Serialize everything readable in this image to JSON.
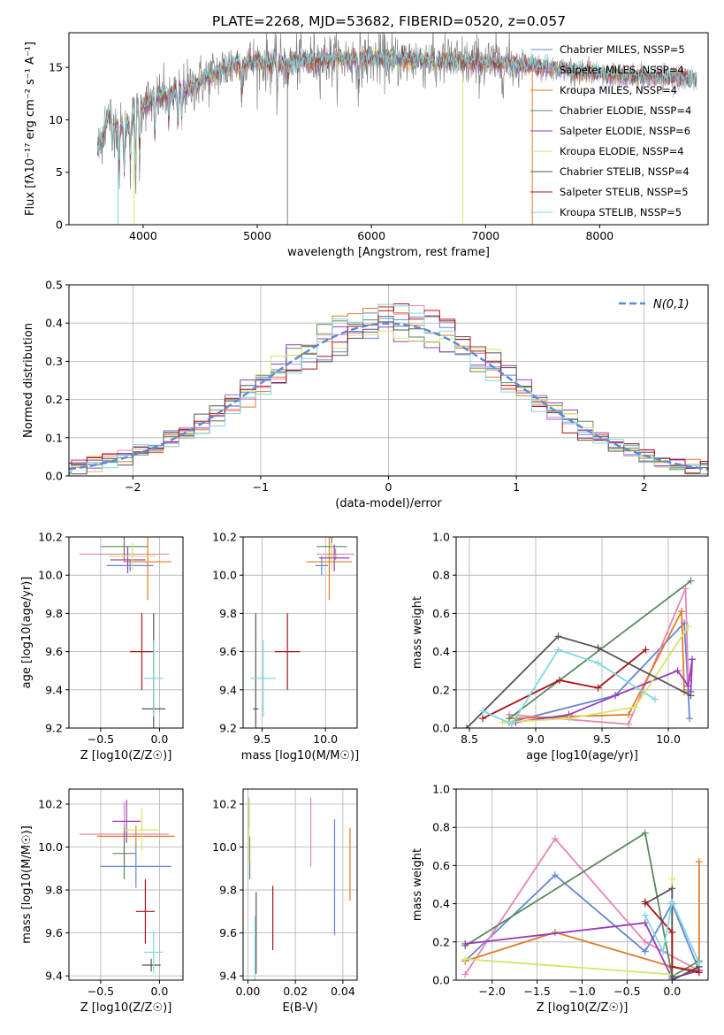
{
  "figure": {
    "title": "PLATE=2268, MJD=53682, FIBERID=0520, z=0.057"
  },
  "colors": {
    "Chabrier MILES": "#6685d9",
    "Salpeter MILES": "#e486b7",
    "Kroupa MILES": "#e07b27",
    "Chabrier ELODIE": "#5a8a5e",
    "Salpeter ELODIE": "#9a39bb",
    "Kroupa ELODIE": "#d4e667",
    "Chabrier STELIB": "#555555",
    "Salpeter STELIB": "#aa1418",
    "Kroupa STELIB": "#7fd8e0"
  },
  "chart_data": [
    {
      "id": "spectrum",
      "type": "line",
      "title": "",
      "xlabel": "wavelength [Angstrom, rest frame]",
      "ylabel": "Flux [fλ10⁻¹⁷ erg cm⁻² s⁻¹ A⁻¹]",
      "xlim": [
        3350,
        8950
      ],
      "ylim": [
        0,
        18.3
      ],
      "xticks": [
        4000,
        5000,
        6000,
        7000,
        8000
      ],
      "yticks": [
        0,
        5,
        10,
        15
      ],
      "grid": false,
      "legend": "top-right",
      "legend_entries": [
        "Chabrier MILES, NSSP=5",
        "Salpeter MILES, NSSP=4",
        "Kroupa MILES, NSSP=4",
        "Chabrier ELODIE, NSSP=4",
        "Salpeter ELODIE, NSSP=6",
        "Kroupa ELODIE, NSSP=4",
        "Chabrier STELIB, NSSP=4",
        "Salpeter STELIB, NSSP=5",
        "Kroupa STELIB, NSSP=5"
      ],
      "continuum": [
        [
          3600,
          7
        ],
        [
          3700,
          10.5
        ],
        [
          3800,
          9
        ],
        [
          3900,
          10
        ],
        [
          4000,
          11.5
        ],
        [
          4200,
          12.3
        ],
        [
          4400,
          13
        ],
        [
          4600,
          14.3
        ],
        [
          4800,
          15.3
        ],
        [
          5000,
          15.5
        ],
        [
          5200,
          15.3
        ],
        [
          5500,
          15.7
        ],
        [
          6000,
          15.8
        ],
        [
          6500,
          15.7
        ],
        [
          7000,
          15.4
        ],
        [
          7400,
          15.2
        ],
        [
          7800,
          14.6
        ],
        [
          8200,
          14.2
        ],
        [
          8600,
          14.0
        ],
        [
          8850,
          13.9
        ]
      ]
    },
    {
      "id": "residuals",
      "type": "line",
      "xlabel": "(data-model)/error",
      "ylabel": "Normed distribution",
      "xlim": [
        -2.5,
        2.5
      ],
      "ylim": [
        0,
        0.5
      ],
      "xticks": [
        -2,
        -1,
        0,
        1,
        2
      ],
      "yticks": [
        0.0,
        0.1,
        0.2,
        0.3,
        0.4,
        0.5
      ],
      "grid": true,
      "legend": "top-right",
      "legend_entries": [
        "N(0,1)"
      ],
      "reference_curve": {
        "name": "N(0,1)",
        "mean": 0,
        "sigma": 1,
        "color": "#5b8dd9"
      }
    },
    {
      "id": "age-vs-Z",
      "type": "scatter",
      "xlabel": "Z [log10(Z/Z☉)]",
      "ylabel": "age [log10(age/yr)]",
      "xlim": [
        -0.77,
        0.2
      ],
      "ylim": [
        9.2,
        10.2
      ],
      "xticks": [
        -0.5,
        0.0
      ],
      "yticks": [
        9.2,
        9.4,
        9.6,
        9.8,
        10.0,
        10.2
      ],
      "grid": true,
      "points": [
        {
          "series": "Chabrier MILES",
          "x": -0.25,
          "xerr": 0.2,
          "y": 10.05,
          "yerr": 0.03
        },
        {
          "series": "Salpeter MILES",
          "x": -0.3,
          "xerr": 0.38,
          "y": 10.11,
          "yerr": 0.03
        },
        {
          "series": "Kroupa MILES",
          "x": -0.1,
          "xerr": 0.2,
          "y": 10.07,
          "yerr": 0.2
        },
        {
          "series": "Chabrier ELODIE",
          "x": -0.3,
          "xerr": 0.2,
          "y": 10.15,
          "yerr": 0.08
        },
        {
          "series": "Salpeter ELODIE",
          "x": -0.27,
          "xerr": 0.15,
          "y": 10.08,
          "yerr": 0.07
        },
        {
          "series": "Kroupa ELODIE",
          "x": -0.23,
          "xerr": 0.2,
          "y": 10.1,
          "yerr": 0.07
        },
        {
          "series": "Chabrier STELIB",
          "x": -0.05,
          "xerr": 0.1,
          "y": 9.3,
          "yerr": 0.5
        },
        {
          "series": "Salpeter STELIB",
          "x": -0.15,
          "xerr": 0.1,
          "y": 9.6,
          "yerr": 0.2
        },
        {
          "series": "Kroupa STELIB",
          "x": -0.05,
          "xerr": 0.08,
          "y": 9.46,
          "yerr": 0.2
        }
      ]
    },
    {
      "id": "age-vs-mass",
      "type": "scatter",
      "xlabel": "mass [log10(M/M☉)]",
      "ylabel": "",
      "xlim": [
        9.35,
        10.25
      ],
      "ylim": [
        9.2,
        10.2
      ],
      "xticks": [
        9.5,
        10.0
      ],
      "yticks": [
        9.2,
        9.4,
        9.6,
        9.8,
        10.0,
        10.2
      ],
      "grid": true,
      "points": [
        {
          "series": "Chabrier MILES",
          "x": 9.97,
          "xerr": 0.05,
          "y": 10.05,
          "yerr": 0.05
        },
        {
          "series": "Salpeter MILES",
          "x": 10.08,
          "xerr": 0.15,
          "y": 10.11,
          "yerr": 0.03
        },
        {
          "series": "Kroupa MILES",
          "x": 10.03,
          "xerr": 0.18,
          "y": 10.07,
          "yerr": 0.2
        },
        {
          "series": "Chabrier ELODIE",
          "x": 10.05,
          "xerr": 0.12,
          "y": 10.15,
          "yerr": 0.08
        },
        {
          "series": "Salpeter ELODIE",
          "x": 10.07,
          "xerr": 0.12,
          "y": 10.09,
          "yerr": 0.07
        },
        {
          "series": "Kroupa ELODIE",
          "x": 10.05,
          "xerr": 0.05,
          "y": 10.1,
          "yerr": 0.07
        },
        {
          "series": "Chabrier STELIB",
          "x": 9.45,
          "xerr": 0.02,
          "y": 9.3,
          "yerr": 0.5
        },
        {
          "series": "Salpeter STELIB",
          "x": 9.7,
          "xerr": 0.1,
          "y": 9.6,
          "yerr": 0.2
        },
        {
          "series": "Kroupa STELIB",
          "x": 9.51,
          "xerr": 0.1,
          "y": 9.46,
          "yerr": 0.2
        }
      ]
    },
    {
      "id": "weight-vs-age",
      "type": "line",
      "xlabel": "age [log10(age/yr)]",
      "ylabel": "mass weight",
      "xlim": [
        8.4,
        10.3
      ],
      "ylim": [
        0,
        1
      ],
      "xticks": [
        8.5,
        9.0,
        9.5,
        10.0
      ],
      "yticks": [
        0.0,
        0.2,
        0.4,
        0.6,
        0.8,
        1.0
      ],
      "grid": true,
      "series": [
        {
          "name": "Chabrier MILES",
          "x": [
            8.8,
            9.6,
            10.12,
            10.15,
            10.16
          ],
          "y": [
            0.03,
            0.17,
            0.55,
            0.2,
            0.05
          ]
        },
        {
          "name": "Salpeter MILES",
          "x": [
            8.8,
            9.7,
            10.13,
            10.15
          ],
          "y": [
            0.07,
            0.02,
            0.73,
            0.25
          ]
        },
        {
          "name": "Kroupa MILES",
          "x": [
            8.8,
            9.7,
            10.1,
            10.12
          ],
          "y": [
            0.05,
            0.07,
            0.61,
            0.19
          ]
        },
        {
          "name": "Chabrier ELODIE",
          "x": [
            8.8,
            10.17
          ],
          "y": [
            0.05,
            0.77
          ]
        },
        {
          "name": "Salpeter ELODIE",
          "x": [
            8.85,
            9.25,
            9.6,
            10.07,
            10.15,
            10.18,
            10.17
          ],
          "y": [
            0.03,
            0.07,
            0.17,
            0.3,
            0.22,
            0.36,
            0.19
          ]
        },
        {
          "name": "Kroupa ELODIE",
          "x": [
            8.75,
            9.25,
            9.75,
            10.15
          ],
          "y": [
            0.03,
            0.05,
            0.11,
            0.53
          ]
        },
        {
          "name": "Chabrier STELIB",
          "x": [
            8.48,
            9.17,
            9.47,
            10.17
          ],
          "y": [
            0.0,
            0.48,
            0.42,
            0.17
          ]
        },
        {
          "name": "Salpeter STELIB",
          "x": [
            8.6,
            9.18,
            9.47,
            9.83
          ],
          "y": [
            0.05,
            0.25,
            0.21,
            0.41
          ]
        },
        {
          "name": "Kroupa STELIB",
          "x": [
            8.6,
            8.82,
            9.17,
            9.47,
            9.9
          ],
          "y": [
            0.09,
            0.02,
            0.41,
            0.34,
            0.15
          ]
        }
      ]
    },
    {
      "id": "mass-vs-Z",
      "type": "scatter",
      "xlabel": "Z [log10(Z/Z☉)]",
      "ylabel": "mass [log10(M/M☉)]",
      "xlim": [
        -0.77,
        0.2
      ],
      "ylim": [
        9.38,
        10.27
      ],
      "xticks": [
        -0.5,
        0.0
      ],
      "yticks": [
        9.4,
        9.6,
        9.8,
        10.0,
        10.2
      ],
      "grid": true,
      "points": [
        {
          "series": "Chabrier MILES",
          "x": -0.2,
          "xerr": 0.3,
          "y": 9.91,
          "yerr": 0.1
        },
        {
          "series": "Salpeter MILES",
          "x": -0.3,
          "xerr": 0.38,
          "y": 10.06,
          "yerr": 0.15
        },
        {
          "series": "Kroupa MILES",
          "x": -0.2,
          "xerr": 0.33,
          "y": 10.05,
          "yerr": 0.05
        },
        {
          "series": "Chabrier ELODIE",
          "x": -0.3,
          "xerr": 0.1,
          "y": 9.97,
          "yerr": 0.12
        },
        {
          "series": "Salpeter ELODIE",
          "x": -0.28,
          "xerr": 0.12,
          "y": 10.12,
          "yerr": 0.1
        },
        {
          "series": "Kroupa ELODIE",
          "x": -0.15,
          "xerr": 0.15,
          "y": 10.08,
          "yerr": 0.1
        },
        {
          "series": "Chabrier STELIB",
          "x": -0.07,
          "xerr": 0.08,
          "y": 9.45,
          "yerr": 0.03
        },
        {
          "series": "Salpeter STELIB",
          "x": -0.12,
          "xerr": 0.08,
          "y": 9.7,
          "yerr": 0.15
        },
        {
          "series": "Kroupa STELIB",
          "x": -0.05,
          "xerr": 0.08,
          "y": 9.51,
          "yerr": 0.1
        }
      ]
    },
    {
      "id": "mass-vs-EBV",
      "type": "scatter",
      "xlabel": "E(B-V)",
      "ylabel": "",
      "xlim": [
        -0.002,
        0.046
      ],
      "ylim": [
        9.38,
        10.27
      ],
      "xticks": [
        0.0,
        0.02,
        0.04
      ],
      "yticks": [
        9.4,
        9.6,
        9.8,
        10.0,
        10.2
      ],
      "grid": true,
      "points": [
        {
          "series": "Chabrier MILES",
          "x": 0.0365,
          "y": 9.86,
          "yerr": 0.27
        },
        {
          "series": "Salpeter MILES",
          "x": 0.0265,
          "y": 10.07,
          "yerr": 0.16
        },
        {
          "series": "Kroupa MILES",
          "x": 0.043,
          "y": 9.92,
          "yerr": 0.17
        },
        {
          "series": "Chabrier ELODIE",
          "x": 0.0008,
          "y": 9.95,
          "yerr": 0.1
        },
        {
          "series": "Salpeter ELODIE",
          "x": 0.0005,
          "y": 10.16,
          "yerr": 0.07
        },
        {
          "series": "Kroupa ELODIE",
          "x": 0.0005,
          "y": 10.08,
          "yerr": 0.15
        },
        {
          "series": "Chabrier STELIB",
          "x": 0.0035,
          "y": 9.6,
          "yerr": 0.19
        },
        {
          "series": "Salpeter STELIB",
          "x": 0.0105,
          "y": 9.67,
          "yerr": 0.15
        },
        {
          "series": "Kroupa STELIB",
          "x": 0.003,
          "y": 9.53,
          "yerr": 0.15
        }
      ]
    },
    {
      "id": "weight-vs-Z",
      "type": "line",
      "xlabel": "Z [log10(Z/Z☉)]",
      "ylabel": "mass weight",
      "xlim": [
        -2.4,
        0.4
      ],
      "ylim": [
        0,
        1
      ],
      "xticks": [
        -2.0,
        -1.5,
        -1.0,
        -0.5,
        0.0
      ],
      "yticks": [
        0.0,
        0.2,
        0.4,
        0.6,
        0.8,
        1.0
      ],
      "grid": true,
      "series": [
        {
          "name": "Chabrier MILES",
          "x": [
            -2.3,
            -1.3,
            -0.3,
            0.0,
            0.3
          ],
          "y": [
            0.1,
            0.55,
            0.15,
            0.4,
            0.05
          ]
        },
        {
          "name": "Salpeter MILES",
          "x": [
            -2.3,
            -1.3,
            -0.3,
            0.3
          ],
          "y": [
            0.03,
            0.74,
            0.2,
            0.05
          ]
        },
        {
          "name": "Kroupa MILES",
          "x": [
            -2.3,
            -1.3,
            0.0,
            0.3,
            0.3
          ],
          "y": [
            0.1,
            0.25,
            0.07,
            0.05,
            0.62
          ]
        },
        {
          "name": "Chabrier ELODIE",
          "x": [
            -2.3,
            -0.3,
            0.0,
            0.3
          ],
          "y": [
            0.18,
            0.77,
            0.02,
            0.1
          ]
        },
        {
          "name": "Salpeter ELODIE",
          "x": [
            -2.3,
            -0.3,
            0.0,
            0.3
          ],
          "y": [
            0.19,
            0.3,
            0.01,
            0.05
          ]
        },
        {
          "name": "Kroupa ELODIE",
          "x": [
            -2.3,
            0.0,
            0.0
          ],
          "y": [
            0.11,
            0.03,
            0.53
          ]
        },
        {
          "name": "Chabrier STELIB",
          "x": [
            -0.3,
            0.0,
            0.0,
            0.3
          ],
          "y": [
            0.4,
            0.48,
            0.0,
            0.07
          ]
        },
        {
          "name": "Salpeter STELIB",
          "x": [
            -0.3,
            0.0,
            0.0,
            0.3
          ],
          "y": [
            0.41,
            0.25,
            0.07,
            0.04
          ]
        },
        {
          "name": "Kroupa STELIB",
          "x": [
            -0.3,
            -0.1,
            0.0,
            0.3
          ],
          "y": [
            0.34,
            0.15,
            0.41,
            0.09
          ]
        }
      ]
    }
  ]
}
